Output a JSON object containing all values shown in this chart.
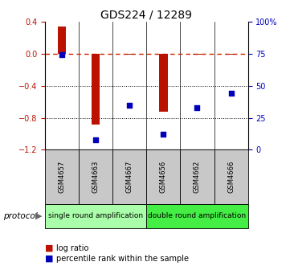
{
  "title": "GDS224 / 12289",
  "samples": [
    "GSM4657",
    "GSM4663",
    "GSM4667",
    "GSM4656",
    "GSM4662",
    "GSM4666"
  ],
  "log_ratio": [
    0.34,
    -0.88,
    -0.01,
    -0.72,
    -0.01,
    -0.01
  ],
  "percentile_rank": [
    74,
    8,
    35,
    12,
    33,
    44
  ],
  "ylim_left": [
    -1.2,
    0.4
  ],
  "ylim_right": [
    0,
    100
  ],
  "yticks_left": [
    -1.2,
    -0.8,
    -0.4,
    0.0,
    0.4
  ],
  "yticks_right": [
    0,
    25,
    50,
    75,
    100
  ],
  "groups": [
    {
      "label": "single round amplification",
      "start": 0,
      "end": 3,
      "color": "#aaffaa"
    },
    {
      "label": "double round amplification",
      "start": 3,
      "end": 6,
      "color": "#44ee44"
    }
  ],
  "bar_color": "#bb1100",
  "dot_color": "#0000bb",
  "dashed_color": "#cc2200",
  "bg_color": "#ffffff",
  "legend_bar": "log ratio",
  "legend_dot": "percentile rank within the sample",
  "title_fontsize": 10,
  "tick_fontsize": 7,
  "sample_fontsize": 6,
  "group_fontsize": 6.5,
  "legend_fontsize": 7
}
